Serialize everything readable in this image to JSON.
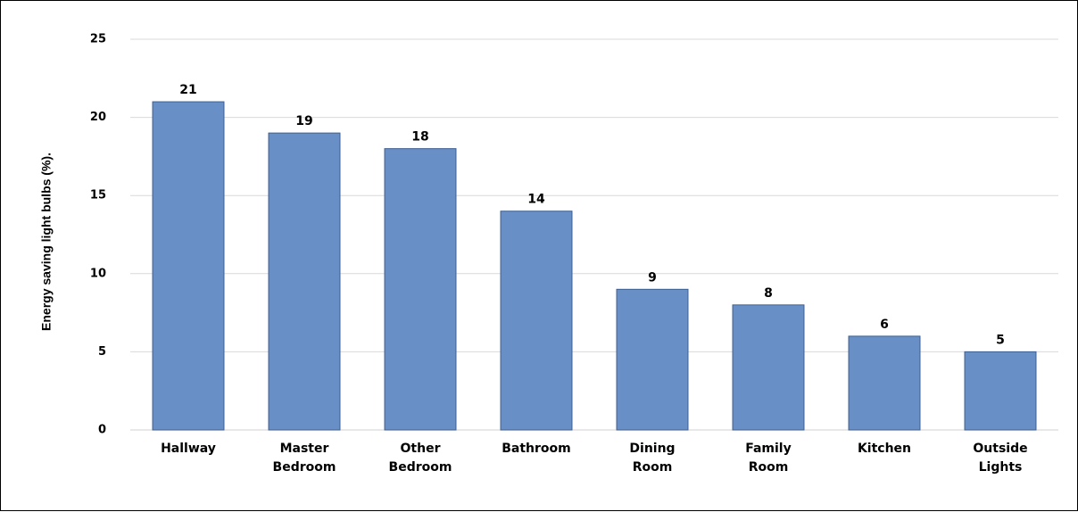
{
  "chart_data": {
    "type": "bar",
    "categories": [
      [
        "Hallway"
      ],
      [
        "Master",
        "Bedroom"
      ],
      [
        "Other",
        "Bedroom"
      ],
      [
        "Bathroom"
      ],
      [
        "Dining",
        "Room"
      ],
      [
        "Family",
        "Room"
      ],
      [
        "Kitchen"
      ],
      [
        "Outside",
        "Lights"
      ]
    ],
    "values": [
      21,
      19,
      18,
      14,
      9,
      8,
      6,
      5
    ],
    "ylabel": "Energy saving light bulbs (%).",
    "xlabel": "",
    "ylim": [
      0,
      25
    ],
    "yticks": [
      0,
      5,
      10,
      15,
      20,
      25
    ],
    "grid": true,
    "bar_color": "#6990c6",
    "bar_edge_color": "#3d5f92",
    "grid_color": "#d9d9d9"
  }
}
